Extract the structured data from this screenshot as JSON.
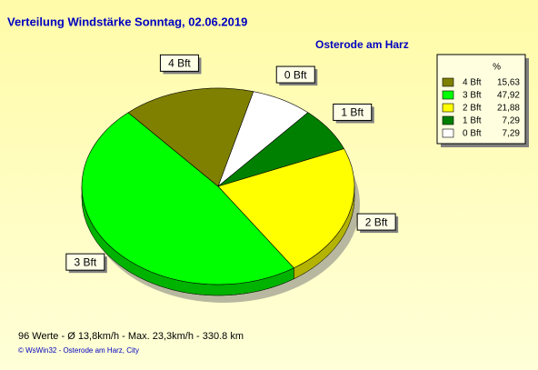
{
  "chart_data": {
    "type": "pie",
    "title": "Verteilung Windstärke  Sonntag, 02.06.2019",
    "subtitle": "Osterode am Harz",
    "legend_title": "%",
    "categories": [
      "4 Bft",
      "3 Bft",
      "2 Bft",
      "1 Bft",
      "0 Bft"
    ],
    "values": [
      15.63,
      47.92,
      21.88,
      7.29,
      7.29
    ],
    "value_labels": [
      "15,63",
      "47,92",
      "21,88",
      "7,29",
      "7,29"
    ],
    "colors": [
      "#808000",
      "#00ff00",
      "#ffff00",
      "#008000",
      "#ffffff"
    ],
    "footer": "96 Werte   -   Ø 13,8km/h  -  Max. 23,3km/h   -   330.8 km",
    "credit": "© WsWin32  -  Osterode am Harz, City"
  }
}
